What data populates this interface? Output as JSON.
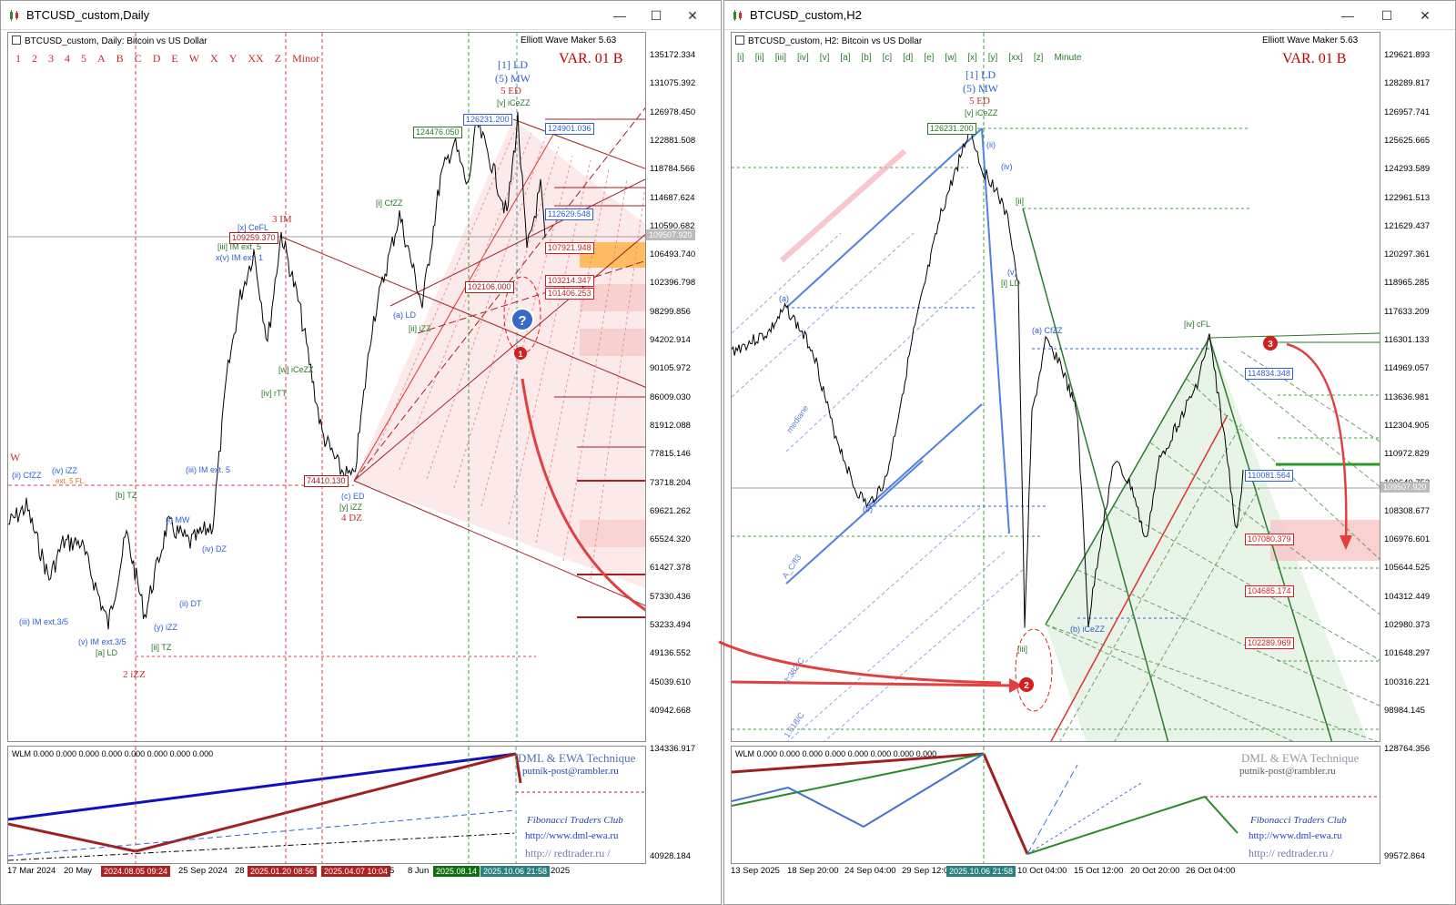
{
  "left": {
    "title": "BTCUSD_custom,Daily",
    "header": "BTCUSD_custom, Daily:  Bitcoin vs US Dollar",
    "ewm": "Elliott Wave Maker 5.63",
    "waves": [
      "1",
      "2",
      "3",
      "4",
      "5",
      "A",
      "B",
      "C",
      "D",
      "E",
      "W",
      "X",
      "Y",
      "XX",
      "Z",
      "Minor"
    ],
    "var_label": "VAR. 01 B",
    "yaxis": [
      "135172.334",
      "131075.392",
      "126978.450",
      "122881.508",
      "118784.566",
      "114687.624",
      "110590.682",
      "106493.740",
      "102396.798",
      "98299.856",
      "94202.914",
      "90105.972",
      "86009.030",
      "81912.088",
      "77815.146",
      "73718.204",
      "69621.262",
      "65524.320",
      "61427.378",
      "57330.436",
      "53233.494",
      "49136.552",
      "45039.610",
      "40942.668"
    ],
    "current_price": "109507.920",
    "price_boxes": {
      "b1": "124476.050",
      "b2": "126231.200",
      "b3": "124901.036",
      "b4": "112629.548",
      "b5": "107921.948",
      "b6": "103214.347",
      "b7": "101406.253",
      "b8": "102106.000",
      "b9": "109259.370",
      "b10": "74410.130"
    },
    "labels": {
      "l1": "[1] LD",
      "l2": "(5) MW",
      "l3": "5 ED",
      "l4": "[v] iCeZZ",
      "l5": "3 IM",
      "l6": "[x] CeFL",
      "l7": "[iii] IM ext. 5",
      "l8": "x(v) IM ext. 1",
      "l9": "[i] CfZZ",
      "l10": "(a) LD",
      "l11": "[ii] iZZ",
      "l12": "[iv] rTT",
      "l13": "4 DZ",
      "l14": "[y] iZZ",
      "l15": "(c) ED",
      "l16": "2 iZZ",
      "l17": "[a] LD",
      "l18": "[ii] TZ",
      "l19": "(v) IM ext.3/5",
      "l20": "(iii) IM ext.3/5",
      "l21": "(iii) IM ext. 5",
      "l22": "(i) MW",
      "l23": "(iv) DZ",
      "l24": "(ii) DT",
      "l25": "[b] TZ",
      "l26": "W",
      "l27": "(ii) CfZZ",
      "l28": "(iv) iZZ",
      "l29": "ext. 5 FL",
      "l30": "[w] iCeZZ",
      "l31": "(y) iZZ"
    },
    "sub": {
      "wlm": "WLM 0.000 0.000 0.000 0.000 0.000 0.000 0.000 0.000",
      "ytop": "134336.917",
      "ybot": "40928.184"
    },
    "credits": {
      "c1": "DML & EWA Technique",
      "c2": "putnik-post@rambler.ru",
      "c3": "Fibonacci     Traders     Club",
      "c4": "http://www.dml-ewa.ru",
      "c5": "http:// redtrader.ru /"
    },
    "xaxis": [
      "17 Mar 2024",
      "20 May",
      "2024.08.05 09:24",
      "25 Sep 2024",
      "28",
      "2025.01.20 08:56",
      "2025.04.07 10:04",
      "5",
      "8 Jun",
      "2025.08.14",
      "2025.10.06 21:58",
      "2025"
    ]
  },
  "right": {
    "title": "BTCUSD_custom,H2",
    "header": "BTCUSD_custom, H2:  Bitcoin vs US Dollar",
    "ewm": "Elliott Wave Maker 5.63",
    "waves": [
      "[i]",
      "[ii]",
      "[iii]",
      "[iv]",
      "[v]",
      "[a]",
      "[b]",
      "[c]",
      "[d]",
      "[e]",
      "[w]",
      "[x]",
      "[y]",
      "[xx]",
      "[z]",
      "Minute"
    ],
    "var_label": "VAR. 01 B",
    "yaxis": [
      "129621.893",
      "128289.817",
      "126957.741",
      "125625.665",
      "124293.589",
      "122961.513",
      "121629.437",
      "120297.361",
      "118965.285",
      "117633.209",
      "116301.133",
      "114969.057",
      "113636.981",
      "112304.905",
      "110972.829",
      "109640.753",
      "108308.677",
      "106976.601",
      "105644.525",
      "104312.449",
      "102980.373",
      "101648.297",
      "100316.221",
      "98984.145"
    ],
    "current_price": "109507.920",
    "price_boxes": {
      "b1": "126231.200",
      "b2": "114834.348",
      "b3": "110081.564",
      "b4": "107080.379",
      "b5": "104685.174",
      "b6": "102289.969"
    },
    "labels": {
      "l1": "[1] LD",
      "l2": "(5) MW",
      "l3": "5 ED",
      "l4": "[v] iCeZZ",
      "l5": "(ii)",
      "l6": "(iv)",
      "l7": "[ii]",
      "l8": "(v)",
      "l9": "[i] LD",
      "l10": "(a) CfZZ",
      "l11": "[iv] cFL",
      "l12": "(b) iCeZZ",
      "l13": "[iii]",
      "l14": "(b)",
      "l15": "(a)"
    },
    "diag": {
      "d1": "mediane",
      "d2": "A_C/fl3",
      "d3": "1.382/C",
      "d4": "1.618/C"
    },
    "sub": {
      "wlm": "WLM 0.000 0.000 0.000 0.000 0.000 0.000 0.000 0.000",
      "ytop": "128764.356",
      "ybot": "99572.864"
    },
    "credits": {
      "c1": "DML & EWA Technique",
      "c2": "putnik-post@rambler.ru",
      "c3": "Fibonacci     Traders     Club",
      "c4": "http://www.dml-ewa.ru",
      "c5": "http:// redtrader.ru /"
    },
    "xaxis": [
      "13 Sep 2025",
      "18 Sep 20:00",
      "24 Sep 04:00",
      "29 Sep 12:00",
      "2025.10.06 21:58",
      "10 Oct 04:00",
      "15 Oct 12:00",
      "20 Oct 20:00",
      "26 Oct 04:00"
    ]
  },
  "markers": [
    "1",
    "2",
    "3",
    "?"
  ],
  "colors": {
    "bear": "#c00000",
    "bull": "#2a7a2a",
    "blue": "#3060d0"
  }
}
